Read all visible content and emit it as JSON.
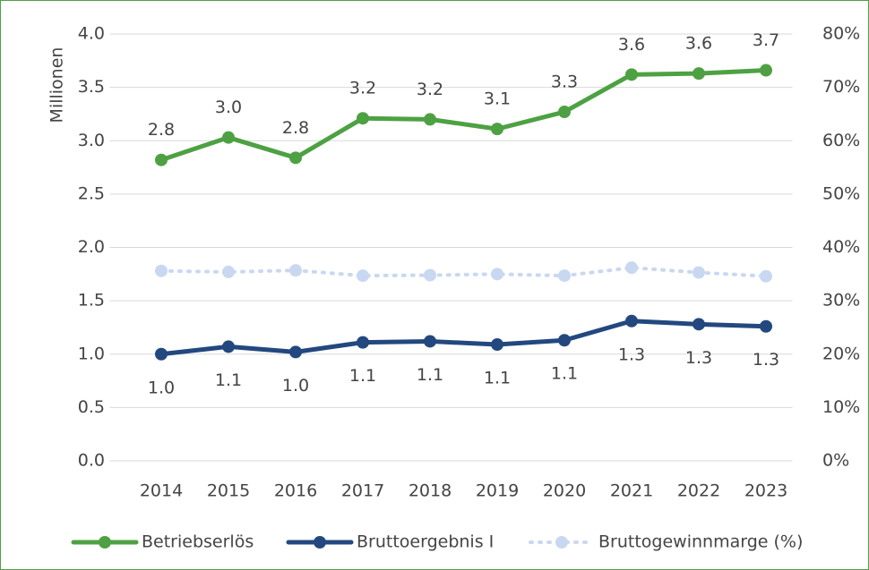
{
  "chart_data": {
    "type": "line",
    "y_label": "Millionen",
    "categories": [
      "2014",
      "2015",
      "2016",
      "2017",
      "2018",
      "2019",
      "2020",
      "2021",
      "2022",
      "2023"
    ],
    "series": [
      {
        "name": "Betriebserlös",
        "color": "#4ea143",
        "values": [
          2.82,
          3.03,
          2.84,
          3.21,
          3.2,
          3.11,
          3.27,
          3.62,
          3.63,
          3.66
        ],
        "value_labels": [
          "2.8",
          "3.0",
          "2.8",
          "3.2",
          "3.2",
          "3.1",
          "3.3",
          "3.6",
          "3.6",
          "3.7"
        ]
      },
      {
        "name": "Bruttoergebnis I",
        "color": "#23487f",
        "values": [
          1.0,
          1.07,
          1.02,
          1.11,
          1.12,
          1.09,
          1.13,
          1.31,
          1.28,
          1.26
        ],
        "value_labels": [
          "1.0",
          "1.1",
          "1.0",
          "1.1",
          "1.1",
          "1.1",
          "1.1",
          "1.3",
          "1.3",
          "1.3"
        ]
      },
      {
        "name": "Bruttogewinnmarge (%)",
        "color": "#c9d8f1",
        "axis": "y2",
        "dashed": true,
        "values": [
          35.6,
          35.4,
          35.7,
          34.7,
          34.8,
          35.0,
          34.7,
          36.2,
          35.3,
          34.6
        ]
      }
    ],
    "ylim": [
      0,
      4
    ],
    "yticks": [
      {
        "value": 0,
        "label": "0.0"
      },
      0.5,
      {
        "value": 1,
        "label": "1.0"
      },
      1.5,
      {
        "value": 2,
        "label": "2.0"
      },
      2.5,
      {
        "value": 3,
        "label": "3.0"
      },
      3.5,
      {
        "value": 4,
        "label": "4.0"
      }
    ],
    "y2lim": [
      0,
      80
    ],
    "y2ticks": [
      {
        "value": 0,
        "label": "0%"
      },
      {
        "value": 10,
        "label": "10%"
      },
      {
        "value": 20,
        "label": "20%"
      },
      {
        "value": 30,
        "label": "30%"
      },
      {
        "value": 40,
        "label": "40%"
      },
      {
        "value": 50,
        "label": "50%"
      },
      {
        "value": 60,
        "label": "60%"
      },
      {
        "value": 70,
        "label": "70%"
      },
      {
        "value": 80,
        "label": "80%"
      }
    ],
    "grid": true,
    "legend": "bottom"
  }
}
